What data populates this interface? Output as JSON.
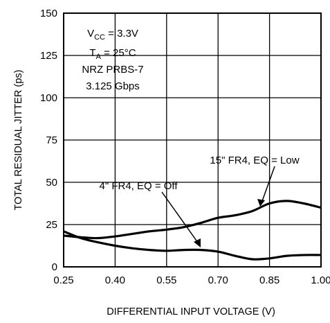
{
  "chart_data": {
    "type": "line",
    "xlabel": "DIFFERENTIAL INPUT VOLTAGE (V)",
    "ylabel": "TOTAL RESIDUAL JITTER (ps)",
    "xlim": [
      0.25,
      1.0
    ],
    "ylim": [
      0,
      150
    ],
    "x_ticks": [
      0.25,
      0.4,
      0.55,
      0.7,
      0.85,
      1.0
    ],
    "x_tick_labels": [
      "0.25",
      "0.40",
      "0.55",
      "0.70",
      "0.85",
      "1.00"
    ],
    "y_ticks": [
      0,
      25,
      50,
      75,
      100,
      125,
      150
    ],
    "y_tick_labels": [
      "0",
      "25",
      "50",
      "75",
      "100",
      "125",
      "150"
    ],
    "grid": true,
    "series": [
      {
        "name": "4\" FR4, EQ = Off",
        "x": [
          0.25,
          0.3,
          0.35,
          0.4,
          0.45,
          0.5,
          0.55,
          0.6,
          0.65,
          0.7,
          0.75,
          0.8,
          0.85,
          0.9,
          0.95,
          1.0
        ],
        "y": [
          21,
          17,
          14.5,
          12.5,
          11,
          10,
          9.5,
          10,
          10,
          9,
          6.5,
          4.5,
          5,
          6.5,
          7,
          7
        ]
      },
      {
        "name": "15\" FR4, EQ = Low",
        "x": [
          0.25,
          0.3,
          0.35,
          0.4,
          0.45,
          0.5,
          0.55,
          0.6,
          0.65,
          0.7,
          0.75,
          0.8,
          0.85,
          0.9,
          0.95,
          1.0
        ],
        "y": [
          18.5,
          17.5,
          17,
          18,
          19.5,
          21,
          22,
          23.5,
          26,
          29,
          30.5,
          33,
          37.5,
          39,
          37.5,
          35
        ]
      }
    ],
    "conditions": {
      "vcc": {
        "main": "V",
        "sub": "CC",
        "rest": " = 3.3V"
      },
      "ta": {
        "main": "T",
        "sub": "A",
        "rest": " = 25°C"
      },
      "line3": "NRZ PRBS-7",
      "line4": "3.125 Gbps"
    },
    "series_labels": {
      "off": "4\" FR4, EQ = Off",
      "low": "15\" FR4, EQ = Low"
    }
  }
}
